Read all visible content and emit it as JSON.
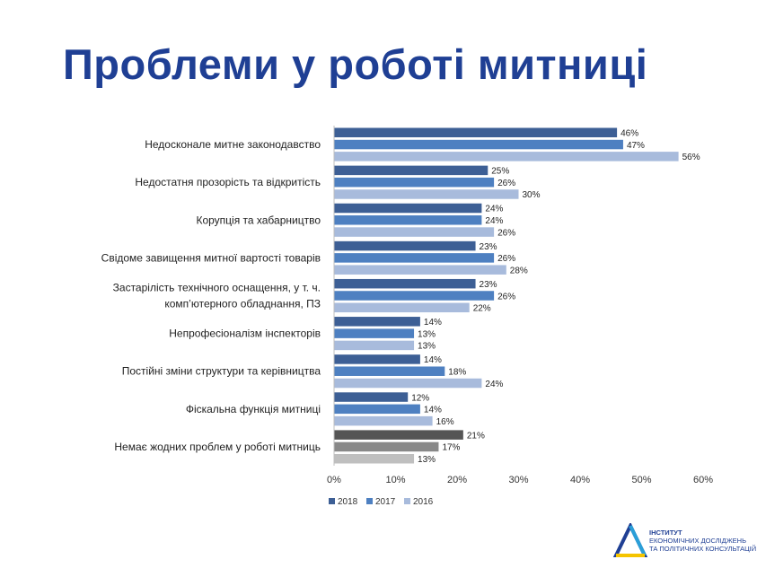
{
  "page_title": "Проблеми у роботі митниці",
  "logo": {
    "line1": "ІНСТИТУТ",
    "line2": "ЕКОНОМІЧНИХ ДОСЛІДЖЕНЬ",
    "line3": "ТА ПОЛІТИЧНИХ КОНСУЛЬТАЦІЙ"
  },
  "chart_data": {
    "type": "bar",
    "orientation": "horizontal",
    "title": "",
    "xlabel": "",
    "ylabel": "",
    "xlim": [
      0,
      60
    ],
    "x_ticks": [
      "0%",
      "10%",
      "20%",
      "30%",
      "40%",
      "50%",
      "60%"
    ],
    "grid": false,
    "legend_position": "bottom-left",
    "categories": [
      [
        "Недосконале митне законодавство"
      ],
      [
        "Недостатня прозорість та відкритість"
      ],
      [
        "Корупція та хабарництво"
      ],
      [
        "Свідоме завищення митної вартості товарів"
      ],
      [
        "Застарілість технічного оснащення, у т. ч.",
        "комп’ютерного обладнання, ПЗ"
      ],
      [
        "Непрофесіоналізм інспекторів"
      ],
      [
        "Постійні зміни структури та керівництва"
      ],
      [
        "Фіскальна функція митниці"
      ],
      [
        "Немає жодних проблем у роботі митниць"
      ]
    ],
    "series": [
      {
        "name": "2018",
        "color": "#3d5f95",
        "values": [
          46,
          25,
          24,
          23,
          23,
          14,
          14,
          12,
          21
        ],
        "labels": [
          "46%",
          "25%",
          "24%",
          "23%",
          "23%",
          "14%",
          "14%",
          "12%",
          "21%"
        ]
      },
      {
        "name": "2017",
        "color": "#4e80c1",
        "values": [
          47,
          26,
          24,
          26,
          26,
          13,
          18,
          14,
          17
        ],
        "labels": [
          "47%",
          "26%",
          "24%",
          "26%",
          "26%",
          "13%",
          "18%",
          "14%",
          "17%"
        ]
      },
      {
        "name": "2016",
        "color": "#a8bbdc",
        "values": [
          56,
          30,
          26,
          28,
          22,
          13,
          24,
          16,
          13
        ],
        "labels": [
          "56%",
          "30%",
          "26%",
          "28%",
          "22%",
          "13%",
          "24%",
          "16%",
          "13%"
        ]
      }
    ],
    "special_colors_last_category": [
      "#555555",
      "#888888",
      "#bfbfbf"
    ]
  }
}
